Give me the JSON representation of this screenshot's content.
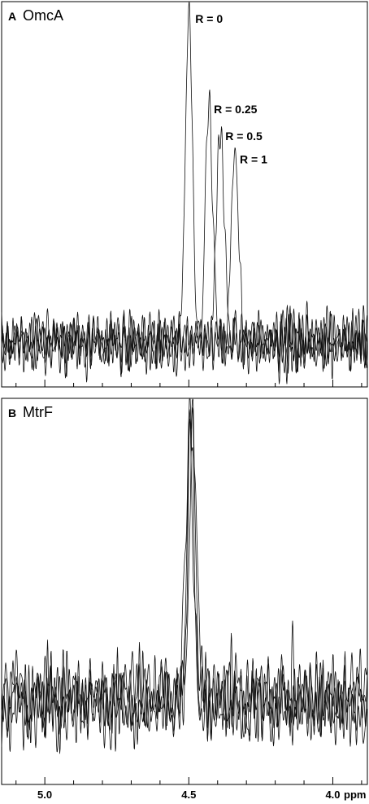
{
  "chart_data": [
    {
      "type": "line",
      "panel": "A",
      "title": "OmcA",
      "xlabel": "",
      "ylabel": "",
      "x_unit": "ppm",
      "x_reversed": true,
      "xlim": [
        5.15,
        3.88
      ],
      "x_ticks": [
        5.0,
        4.5,
        4.0
      ],
      "series": [
        {
          "label": "R = 0",
          "peak_ppm": 4.5,
          "peak_height": 1.0,
          "peak_width": 0.012
        },
        {
          "label": "R = 0.25",
          "peak_ppm": 4.43,
          "peak_height": 0.7,
          "peak_width": 0.013
        },
        {
          "label": "R = 0.5",
          "peak_ppm": 4.39,
          "peak_height": 0.62,
          "peak_width": 0.014
        },
        {
          "label": "R = 1",
          "peak_ppm": 4.34,
          "peak_height": 0.55,
          "peak_width": 0.013
        }
      ],
      "noise_level": 0.09,
      "grid": false,
      "legend": "none"
    },
    {
      "type": "line",
      "panel": "B",
      "title": "MtrF",
      "xlabel": "",
      "ylabel": "",
      "x_unit": "ppm",
      "x_reversed": true,
      "xlim": [
        5.15,
        3.88
      ],
      "x_ticks": [
        5.0,
        4.5,
        4.0
      ],
      "x_tick_labels": [
        "5.0",
        "4.5",
        "4.0"
      ],
      "series": [
        {
          "peak_ppm": 4.49,
          "peak_height": 1.0,
          "peak_width": 0.012
        },
        {
          "peak_ppm": 4.495,
          "peak_height": 0.99,
          "peak_width": 0.012
        },
        {
          "peak_ppm": 4.485,
          "peak_height": 0.98,
          "peak_width": 0.012
        },
        {
          "peak_ppm": 4.5,
          "peak_height": 0.97,
          "peak_width": 0.012
        }
      ],
      "noise_level": 0.16,
      "grid": false,
      "legend": "none"
    }
  ]
}
